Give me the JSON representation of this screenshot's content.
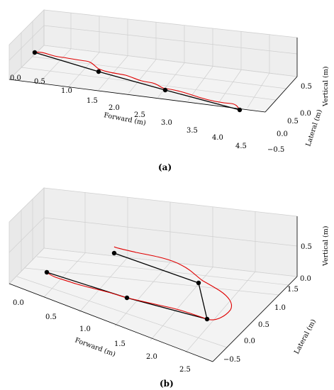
{
  "chart_data": [
    {
      "type": "line",
      "caption": "(a)",
      "xlabel": "Forward (m)",
      "ylabel": "Lateral (m)",
      "zlabel": "Vertical (m)",
      "x_ticks": [
        "0.0",
        "0.5",
        "1.0",
        "1.5",
        "2.0",
        "2.5",
        "3.0",
        "3.5",
        "4.0",
        "4.5"
      ],
      "y_ticks": [
        "0.5",
        "0.0",
        "−0.5"
      ],
      "z_ticks": [
        "0.5",
        "0.0"
      ],
      "waypoints": [
        {
          "x": 0.2,
          "y": 0.0,
          "z": 0.35
        },
        {
          "x": 1.5,
          "y": 0.0,
          "z": 0.3
        },
        {
          "x": 2.9,
          "y": 0.0,
          "z": 0.25
        },
        {
          "x": 4.2,
          "y": 0.0,
          "z": 0.2
        }
      ],
      "series": [
        {
          "name": "",
          "color": "#000000",
          "style": "segments between waypoints"
        },
        {
          "name": "",
          "color": "#e00000",
          "style": "smooth trajectory"
        }
      ]
    },
    {
      "type": "line",
      "caption": "(b)",
      "xlabel": "Forward (m)",
      "ylabel": "Lateral (m)",
      "zlabel": "Vertical (m)",
      "x_ticks": [
        "0.0",
        "0.5",
        "1.0",
        "1.5",
        "2.0",
        "2.5"
      ],
      "y_ticks": [
        "1.5",
        "1.0",
        "0.5",
        "0.0",
        "−0.5"
      ],
      "z_ticks": [
        "0.5",
        "0.0"
      ],
      "waypoints": [
        {
          "x": 0.2,
          "y": 0.0,
          "z": 0.1
        },
        {
          "x": 1.3,
          "y": 0.0,
          "z": 0.1
        },
        {
          "x": 2.6,
          "y": 0.0,
          "z": 0.1
        },
        {
          "x": 2.6,
          "y": 1.0,
          "z": 0.1
        },
        {
          "x": 1.0,
          "y": 1.0,
          "z": 0.3
        }
      ],
      "series": [
        {
          "name": "",
          "color": "#000000",
          "style": "segments between waypoints"
        },
        {
          "name": "",
          "color": "#e00000",
          "style": "smooth trajectory"
        }
      ]
    }
  ]
}
